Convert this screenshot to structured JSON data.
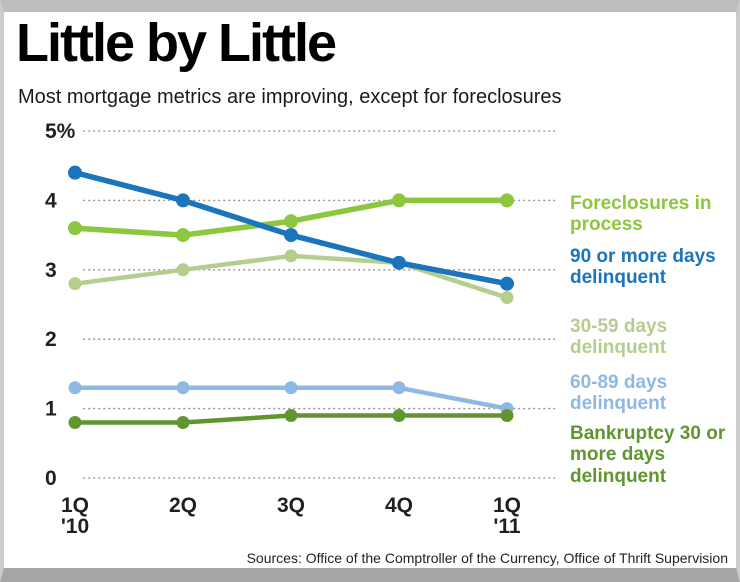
{
  "header": {
    "title": "Little by Little",
    "subtitle": "Most mortgage metrics are improving, except for foreclosures"
  },
  "chart_data": {
    "type": "line",
    "title": "Little by Little",
    "subtitle": "Most mortgage metrics are improving, except for foreclosures",
    "categories": [
      "1Q '10",
      "2Q",
      "3Q",
      "4Q",
      "1Q '11"
    ],
    "x_labels": [
      {
        "q": "1Q",
        "year": "'10"
      },
      {
        "q": "2Q",
        "year": ""
      },
      {
        "q": "3Q",
        "year": ""
      },
      {
        "q": "4Q",
        "year": ""
      },
      {
        "q": "1Q",
        "year": "'11"
      }
    ],
    "ylim": [
      0,
      5
    ],
    "yticks": [
      {
        "value": 5,
        "label": "5%"
      },
      {
        "value": 4,
        "label": "4"
      },
      {
        "value": 3,
        "label": "3"
      },
      {
        "value": 2,
        "label": "2"
      },
      {
        "value": 1,
        "label": "1"
      },
      {
        "value": 0,
        "label": "0"
      }
    ],
    "grid": "dotted horizontal lines",
    "legend_position": "right",
    "series": [
      {
        "id": "foreclosures",
        "name": "Foreclosures in process",
        "color": "#8dc63f",
        "values": [
          3.6,
          3.5,
          3.7,
          4.0,
          4.0
        ]
      },
      {
        "id": "90-plus",
        "name": "90 or more days delinquent",
        "color": "#1b75bc",
        "values": [
          4.4,
          4.0,
          3.5,
          3.1,
          2.8
        ]
      },
      {
        "id": "30-59",
        "name": "30-59 days delinquent",
        "color": "#b5cd8e",
        "values": [
          2.8,
          3.0,
          3.2,
          3.1,
          2.6
        ]
      },
      {
        "id": "60-89",
        "name": "60-89 days delinquent",
        "color": "#8fb9e2",
        "values": [
          1.3,
          1.3,
          1.3,
          1.3,
          1.0
        ]
      },
      {
        "id": "bankruptcy",
        "name": "Bankruptcy 30 or more days delinquent",
        "color": "#61952f",
        "values": [
          0.8,
          0.8,
          0.9,
          0.9,
          0.9
        ]
      }
    ]
  },
  "footer": {
    "source": "Sources: Office of the Comptroller of the Currency, Office of Thrift Supervision"
  }
}
